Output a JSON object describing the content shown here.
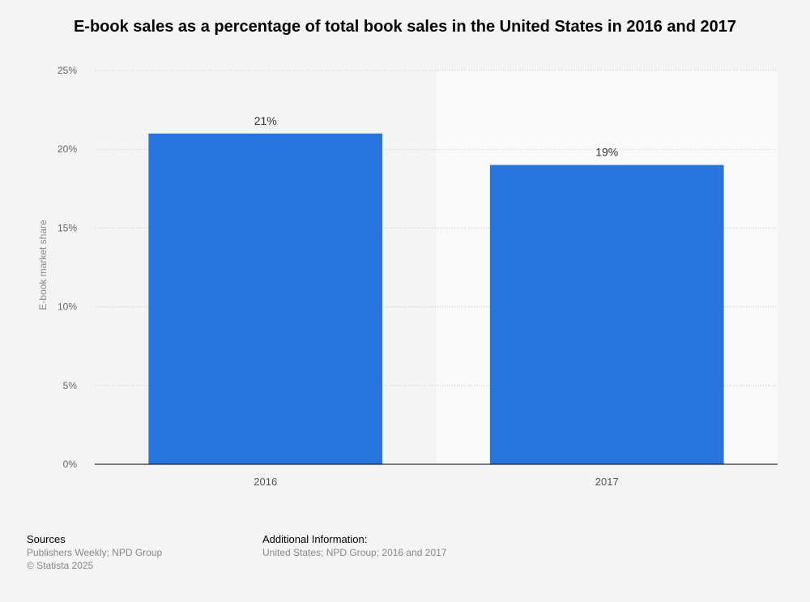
{
  "chart_data": {
    "type": "bar",
    "title": "E-book sales as a percentage of total book sales in the United States in 2016 and 2017",
    "categories": [
      "2016",
      "2017"
    ],
    "values": [
      21,
      19
    ],
    "value_labels": [
      "21%",
      "19%"
    ],
    "xlabel": "",
    "ylabel": "E-book market share",
    "ylim": [
      0,
      25
    ],
    "yticks": [
      0,
      5,
      10,
      15,
      20,
      25
    ],
    "ytick_labels": [
      "0%",
      "5%",
      "10%",
      "15%",
      "20%",
      "25%"
    ],
    "grid": true,
    "bar_color": "#2876dd"
  },
  "footer": {
    "sources_title": "Sources",
    "sources_text": "Publishers Weekly; NPD Group",
    "copyright": "© Statista 2025",
    "additional_title": "Additional Information:",
    "additional_text": "United States; NPD Group; 2016 and 2017"
  }
}
